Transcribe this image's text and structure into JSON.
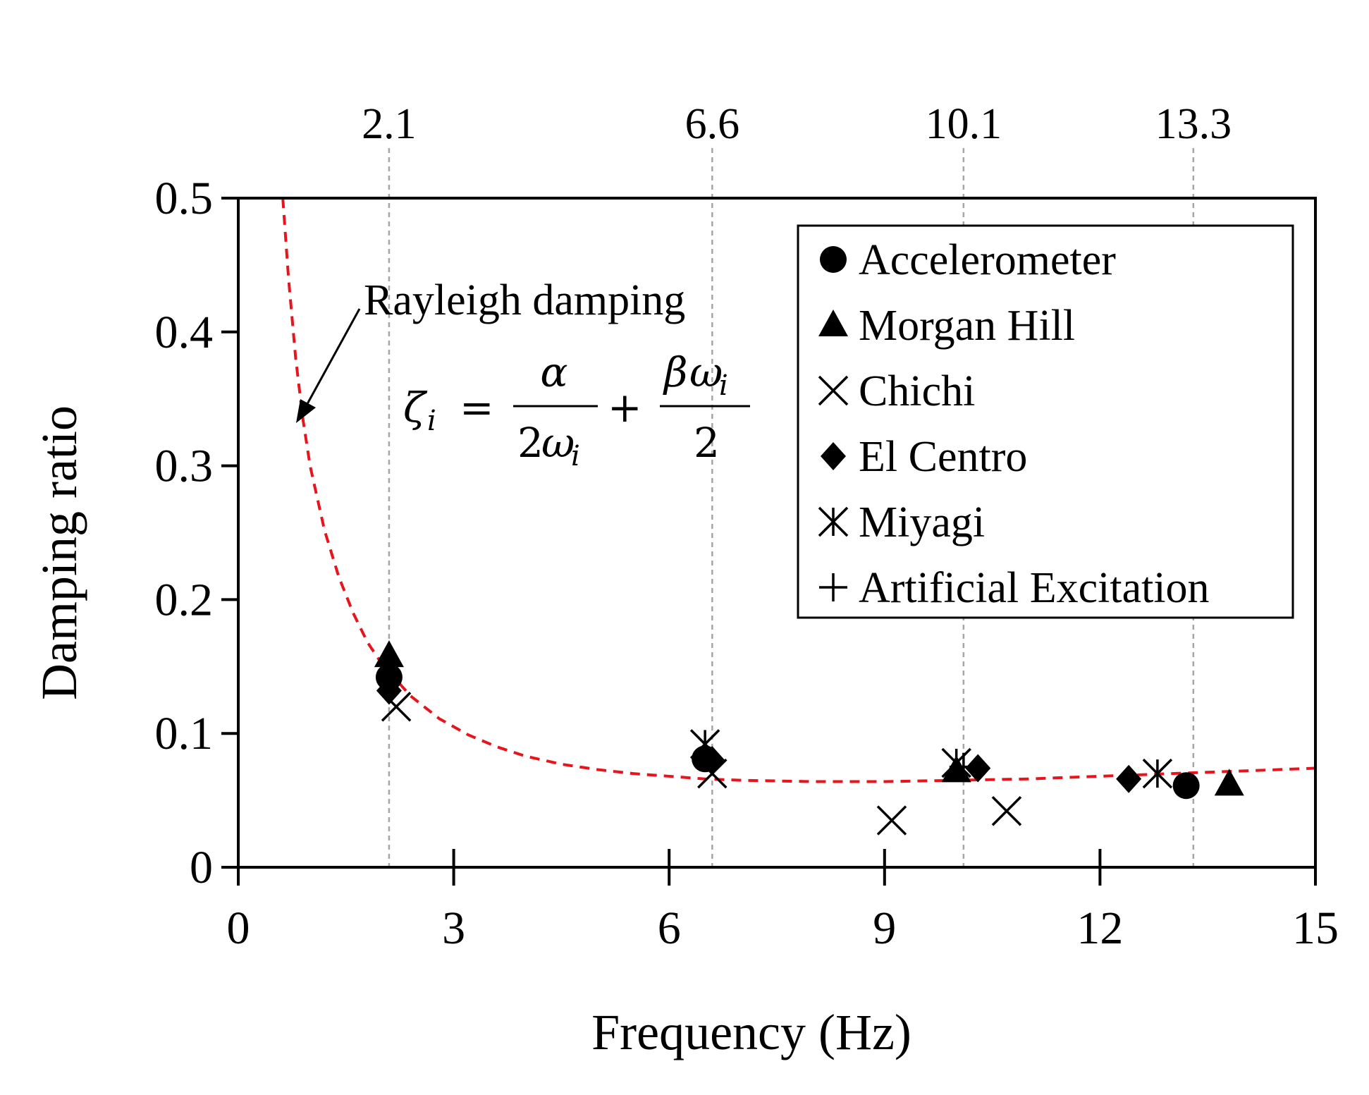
{
  "chart_data": {
    "type": "scatter",
    "xlabel": "Frequency (Hz)",
    "ylabel": "Damping ratio",
    "xlim": [
      0,
      15
    ],
    "ylim": [
      0,
      0.5
    ],
    "xticks": [
      "0",
      "3",
      "6",
      "9",
      "12",
      "15"
    ],
    "yticks": [
      "0",
      "0.1",
      "0.2",
      "0.3",
      "0.4",
      "0.5"
    ],
    "grid": false,
    "legend_position": "top-right",
    "modal_frequencies": [
      "2.1",
      "6.6",
      "10.1",
      "13.3"
    ],
    "rayleigh_curve": {
      "label": "Rayleigh damping",
      "equation": "ζ_i = α/(2ω_i) + βω_i/2",
      "eq_zeta": "ζ",
      "eq_sub": "i",
      "eq_equals": "=",
      "eq_plus": "+",
      "eq_alpha": "α",
      "eq_two": "2",
      "eq_omega": "ω",
      "eq_beta": "β",
      "color": "#e8141b",
      "style": "dashed",
      "points": [
        [
          0.62,
          0.5
        ],
        [
          0.7,
          0.44
        ],
        [
          0.8,
          0.38
        ],
        [
          0.9,
          0.335
        ],
        [
          1.0,
          0.3
        ],
        [
          1.2,
          0.252
        ],
        [
          1.4,
          0.217
        ],
        [
          1.6,
          0.19
        ],
        [
          1.8,
          0.168
        ],
        [
          2.0,
          0.152
        ],
        [
          2.4,
          0.128
        ],
        [
          2.8,
          0.111
        ],
        [
          3.2,
          0.099
        ],
        [
          3.6,
          0.09
        ],
        [
          4.0,
          0.083
        ],
        [
          4.5,
          0.077
        ],
        [
          5.0,
          0.073
        ],
        [
          5.5,
          0.07
        ],
        [
          6.0,
          0.068
        ],
        [
          6.5,
          0.066
        ],
        [
          7.0,
          0.065
        ],
        [
          8.0,
          0.064
        ],
        [
          9.0,
          0.064
        ],
        [
          10.0,
          0.065
        ],
        [
          11.0,
          0.066
        ],
        [
          12.0,
          0.068
        ],
        [
          13.0,
          0.07
        ],
        [
          14.0,
          0.072
        ],
        [
          15.0,
          0.074
        ]
      ]
    },
    "series": [
      {
        "name": "Accelerometer",
        "marker": "circle",
        "points": [
          [
            2.1,
            0.142
          ],
          [
            6.5,
            0.081
          ],
          [
            13.2,
            0.061
          ]
        ]
      },
      {
        "name": "Morgan Hill",
        "marker": "triangle",
        "points": [
          [
            2.1,
            0.158
          ],
          [
            10.0,
            0.072
          ],
          [
            13.8,
            0.062
          ]
        ]
      },
      {
        "name": "Chichi",
        "marker": "x",
        "points": [
          [
            2.2,
            0.12
          ],
          [
            6.6,
            0.07
          ],
          [
            9.1,
            0.035
          ],
          [
            10.7,
            0.042
          ]
        ]
      },
      {
        "name": "El Centro",
        "marker": "diamond",
        "points": [
          [
            2.1,
            0.132
          ],
          [
            6.6,
            0.08
          ],
          [
            10.3,
            0.074
          ],
          [
            12.4,
            0.066
          ]
        ]
      },
      {
        "name": "Miyagi",
        "marker": "asterisk",
        "points": [
          [
            6.5,
            0.092
          ],
          [
            10.0,
            0.078
          ],
          [
            12.8,
            0.07
          ]
        ]
      },
      {
        "name": "Artificial Excitation",
        "marker": "plus",
        "points": [
          [
            10.1,
            0.075
          ]
        ]
      }
    ],
    "colors": {
      "markers": "#000000",
      "axes": "#000000",
      "modal_lines": "#a6a6a6"
    }
  }
}
